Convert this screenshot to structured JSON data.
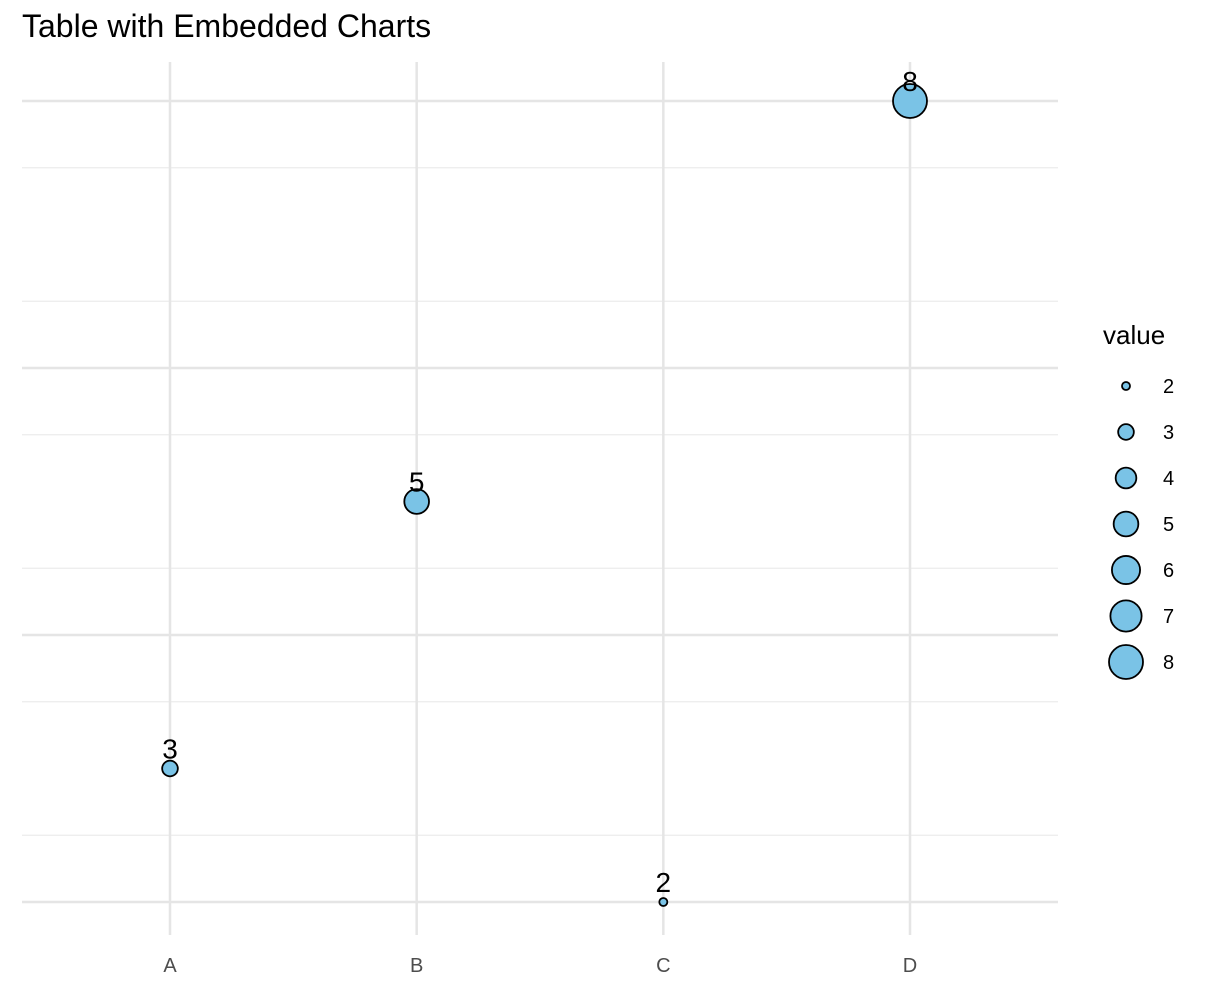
{
  "chart_data": {
    "type": "scatter",
    "title": "Table with Embedded Charts",
    "xlabel": "",
    "ylabel": "",
    "categories": [
      "A",
      "B",
      "C",
      "D"
    ],
    "values": [
      3,
      5,
      2,
      8
    ],
    "ylim": [
      1.95,
      8.25
    ],
    "grid": true,
    "point_color": "#7AC3E6",
    "point_stroke": "#000000",
    "legend": {
      "title": "value",
      "placement": "right",
      "entries": [
        "2",
        "3",
        "4",
        "5",
        "6",
        "7",
        "8"
      ],
      "size_values": [
        2,
        3,
        4,
        5,
        6,
        7,
        8
      ]
    }
  }
}
